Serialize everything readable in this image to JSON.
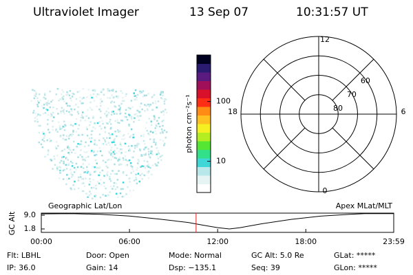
{
  "header": {
    "title": "Ultraviolet Imager",
    "date": "13 Sep 07",
    "time": "10:31:57 UT"
  },
  "colorbar": {
    "label": "photon cm⁻²s⁻¹",
    "log": true,
    "ylim": [
      3,
      600
    ],
    "yticks": [
      10,
      100
    ],
    "colors": [
      "#ffffff",
      "#e6f4f4",
      "#b8e8ea",
      "#3fd6d8",
      "#33e08a",
      "#55e633",
      "#b4ee22",
      "#f4f022",
      "#ffc022",
      "#ff8c14",
      "#ff2e14",
      "#d8102a",
      "#a0105a",
      "#5a1a80",
      "#2a1a70",
      "#000020"
    ]
  },
  "polar": {
    "rlim": [
      90,
      50
    ],
    "rticks": [
      80,
      70,
      60
    ],
    "mlt_ticks": [
      12,
      18,
      6,
      0
    ]
  },
  "timeline": {
    "left_title": "Geographic Lat/Lon",
    "right_title": "Apex MLat/MLT",
    "ylabel": "GC Alt",
    "xlim": [
      0,
      23.983
    ],
    "ylim": [
      0,
      10.1
    ],
    "xticks": [
      {
        "value": 0,
        "label": "00:00"
      },
      {
        "value": 6,
        "label": "06:00"
      },
      {
        "value": 12,
        "label": "12:00"
      },
      {
        "value": 18,
        "label": "18:00"
      },
      {
        "value": 23.983,
        "label": "23:59"
      }
    ],
    "yticks": [
      {
        "value": 9,
        "label": "9.0"
      },
      {
        "value": 1.8,
        "label": "1.8"
      }
    ],
    "x": [
      0,
      2,
      4,
      6,
      8,
      10,
      11,
      12,
      12.8,
      13.5,
      15,
      17,
      19,
      21,
      22,
      23.983
    ],
    "values": [
      9.7,
      9.8,
      9.5,
      8.6,
      7.0,
      5.2,
      3.8,
      2.5,
      1.8,
      2.4,
      4.5,
      6.8,
      8.5,
      9.5,
      9.8,
      9.8
    ],
    "line_color": "#000000",
    "marker_time": 10.5325,
    "marker_color": "#e02020"
  },
  "footer": {
    "rows": [
      [
        "Flt: LBHL",
        "Door: Open",
        "Mode: Normal",
        "GC Alt: 5.0 Re",
        "GLat: *****"
      ],
      [
        "IP: 36.0",
        "Gain: 14",
        "Dsp: −135.1",
        "Seq: 39",
        "GLon: *****"
      ]
    ]
  }
}
